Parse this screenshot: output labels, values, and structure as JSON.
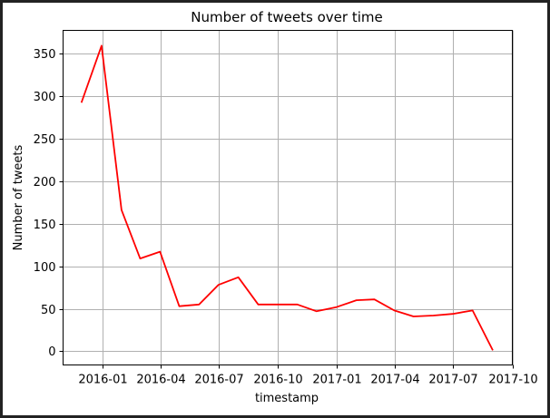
{
  "chart_data": {
    "type": "line",
    "title": "Number of tweets over time",
    "xlabel": "timestamp",
    "ylabel": "Number of tweets",
    "x_tick_labels": [
      "2016-01",
      "2016-04",
      "2016-07",
      "2016-10",
      "2017-01",
      "2017-04",
      "2017-07",
      "2017-10"
    ],
    "x_tick_dates": [
      "2016-01-01",
      "2016-04-01",
      "2016-07-01",
      "2016-10-01",
      "2017-01-01",
      "2017-04-01",
      "2017-07-01",
      "2017-10-01"
    ],
    "y_ticks": [
      0,
      50,
      100,
      150,
      200,
      250,
      300,
      350
    ],
    "xlim": [
      "2015-11-01",
      "2017-10-01"
    ],
    "ylim": [
      -16,
      377
    ],
    "grid": true,
    "series": [
      {
        "color": "#ff0000",
        "x": [
          "2015-11-30",
          "2015-12-31",
          "2016-01-31",
          "2016-02-29",
          "2016-03-31",
          "2016-04-30",
          "2016-05-31",
          "2016-06-30",
          "2016-07-31",
          "2016-08-31",
          "2016-09-30",
          "2016-10-31",
          "2016-11-30",
          "2016-12-31",
          "2017-01-31",
          "2017-02-28",
          "2017-03-31",
          "2017-04-30",
          "2017-05-31",
          "2017-06-30",
          "2017-07-31",
          "2017-08-31"
        ],
        "values": [
          293,
          359,
          166,
          109,
          117,
          53,
          55,
          78,
          87,
          55,
          55,
          55,
          47,
          52,
          60,
          61,
          48,
          41,
          42,
          44,
          48,
          2
        ]
      }
    ]
  }
}
